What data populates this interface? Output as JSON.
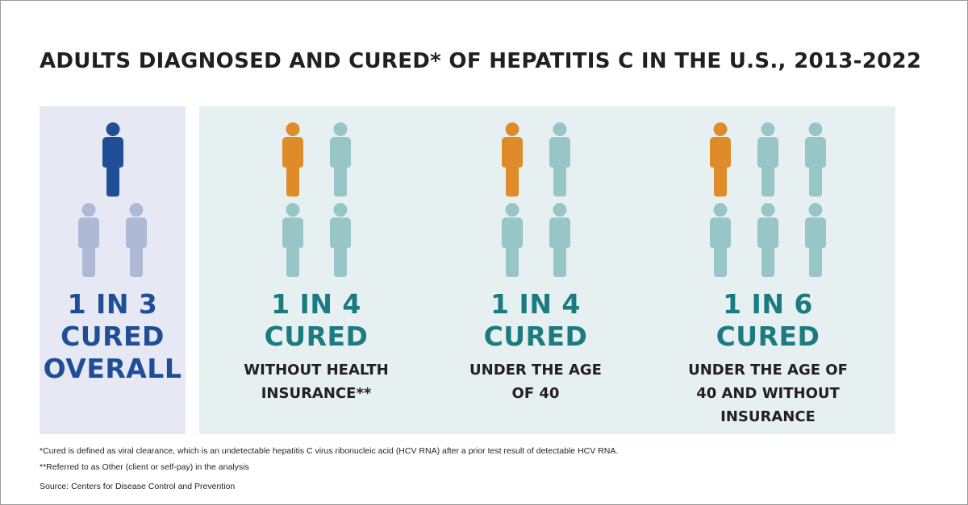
{
  "title": "ADULTS DIAGNOSED AND CURED* OF HEPATITIS C IN THE U.S., 2013-2022",
  "colors": {
    "overall_cured": "#1f4e96",
    "overall_not_cured": "#aebad5",
    "cured": "#de8b2a",
    "not_cured": "#98c5c6",
    "overall_text": "#1f4e96",
    "stat_text": "#1c7b80",
    "panel_left_bg": "#e6e9f3",
    "panel_right_bg": "#e7f0f0"
  },
  "chart_data": {
    "type": "pictograph",
    "title": "ADULTS DIAGNOSED AND CURED* OF HEPATITIS C IN THE U.S., 2013-2022",
    "groups": [
      {
        "cured": 1,
        "total": 3,
        "stat_lines": [
          "1 IN 3",
          "CURED",
          "OVERALL"
        ],
        "description_lines": []
      },
      {
        "cured": 1,
        "total": 4,
        "stat_lines": [
          "1 IN 4",
          "CURED"
        ],
        "description_lines": [
          "WITHOUT HEALTH",
          "INSURANCE**"
        ]
      },
      {
        "cured": 1,
        "total": 4,
        "stat_lines": [
          "1 IN 4",
          "CURED"
        ],
        "description_lines": [
          "UNDER THE AGE",
          "OF 40"
        ]
      },
      {
        "cured": 1,
        "total": 6,
        "stat_lines": [
          "1 IN 6",
          "CURED"
        ],
        "description_lines": [
          "UNDER THE AGE OF",
          "40 AND WITHOUT",
          "INSURANCE"
        ]
      }
    ]
  },
  "footnotes": {
    "cured_definition": "*Cured is defined as viral clearance, which is an undetectable hepatitis C virus ribonucleic acid (HCV RNA) after a prior test result of detectable HCV RNA.",
    "other_definition": "**Referred to as Other (client or self-pay) in the analysis",
    "source": "Source: Centers for Disease Control and Prevention"
  }
}
